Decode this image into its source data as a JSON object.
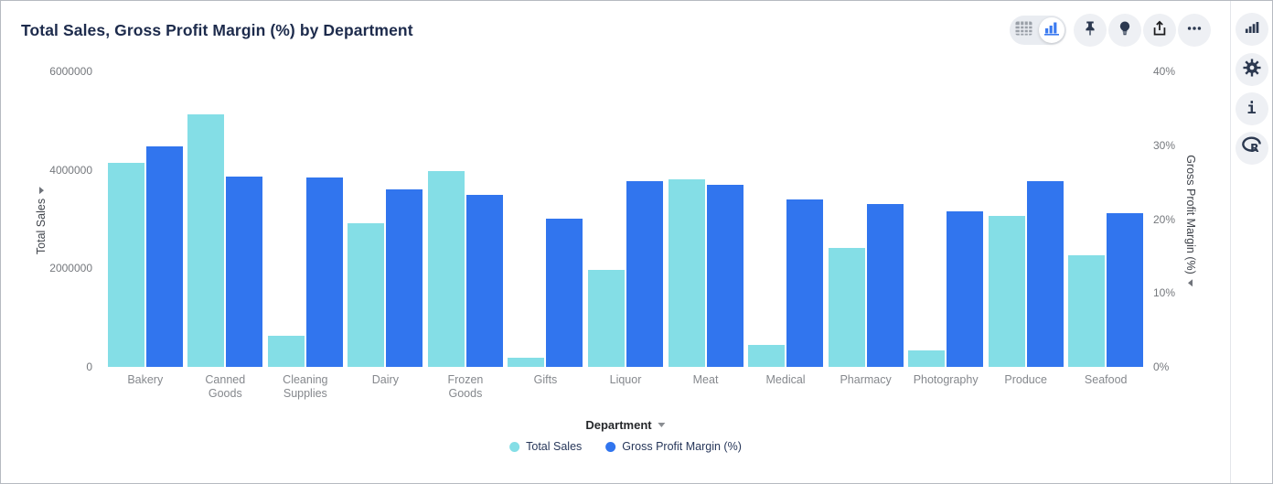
{
  "header": {
    "title": "Total Sales, Gross Profit Margin (%) by Department"
  },
  "toolbar": {
    "view_toggle": {
      "options": [
        "table-view",
        "chart-view"
      ],
      "selected": "chart-view"
    },
    "icons": [
      "table-icon",
      "bar-chart-icon",
      "pin-icon",
      "lightbulb-icon",
      "share-icon",
      "ellipsis-icon"
    ]
  },
  "right_rail": {
    "icons": [
      "bar-chart-icon",
      "gear-icon",
      "info-icon",
      "r-logo-icon"
    ]
  },
  "colors": {
    "series_total_sales": "#84dee6",
    "series_gross_profit_margin": "#3175ee",
    "title_text": "#1d2b4c",
    "tick_text": "#75787d",
    "category_text": "#85888d",
    "legend_text": "#27375a",
    "icon_navy": "#2c3950",
    "icon_circle_bg": "#eef0f4"
  },
  "chart_data": {
    "type": "bar",
    "title": "Total Sales, Gross Profit Margin (%) by Department",
    "grid": false,
    "legend_position": "bottom",
    "categories": [
      "Bakery",
      "Canned Goods",
      "Cleaning Supplies",
      "Dairy",
      "Frozen Goods",
      "Gifts",
      "Liquor",
      "Meat",
      "Medical",
      "Pharmacy",
      "Photography",
      "Produce",
      "Seafood"
    ],
    "series": [
      {
        "name": "Total Sales",
        "axis": "left",
        "color": "#84dee6",
        "values": [
          4150000,
          5130000,
          630000,
          2920000,
          3970000,
          180000,
          1970000,
          3800000,
          450000,
          2410000,
          330000,
          3060000,
          2260000
        ]
      },
      {
        "name": "Gross Profit Margin (%)",
        "axis": "right",
        "color": "#3175ee",
        "values": [
          29.9,
          25.7,
          25.6,
          24.0,
          23.3,
          20.0,
          25.2,
          24.6,
          22.7,
          22.1,
          21.0,
          25.1,
          20.8
        ]
      }
    ],
    "left_axis": {
      "title": "Total Sales",
      "min": 0,
      "max": 6000000,
      "tick_values": [
        0,
        2000000,
        4000000,
        6000000
      ],
      "tick_labels": [
        "0",
        "2000000",
        "4000000",
        "6000000"
      ]
    },
    "right_axis": {
      "title": "Gross Profit Margin (%)",
      "min": 0,
      "max": 40,
      "tick_values": [
        0,
        10,
        20,
        30,
        40
      ],
      "tick_labels": [
        "0%",
        "10%",
        "20%",
        "30%",
        "40%"
      ]
    },
    "x_axis": {
      "title": "Department"
    }
  }
}
